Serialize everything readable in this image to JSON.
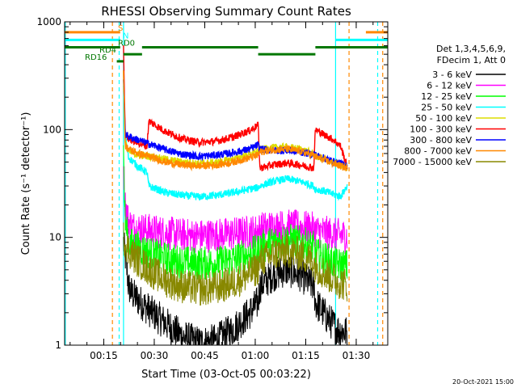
{
  "chart_data": {
    "type": "line",
    "title": "RHESSI Observing Summary Count Rates",
    "xlabel": "Start Time (03-Oct-05 00:03:22)",
    "ylabel": "Count Rate (s⁻¹ detector⁻¹)",
    "footer": "20-Oct-2021 15:00",
    "x_unit": "minutes after 00:03:22",
    "xlim": [
      0,
      96
    ],
    "ylim": [
      1,
      1000
    ],
    "y_scale": "log",
    "x_ticks": [
      {
        "value": 11.63,
        "label": "00:15"
      },
      {
        "value": 26.63,
        "label": "00:30"
      },
      {
        "value": 41.63,
        "label": "00:45"
      },
      {
        "value": 56.63,
        "label": "01:00"
      },
      {
        "value": 71.63,
        "label": "01:15"
      },
      {
        "value": 86.63,
        "label": "01:30"
      }
    ],
    "y_ticks": [
      {
        "value": 1,
        "label": "1"
      },
      {
        "value": 10,
        "label": "10"
      },
      {
        "value": 100,
        "label": "100"
      },
      {
        "value": 1000,
        "label": "1000"
      }
    ],
    "legend": {
      "placement": "right",
      "header1": "Det 1,3,4,5,6,9,",
      "header2": "FDecim 1, Att 0"
    },
    "series": [
      {
        "name": "3 - 6 keV",
        "color": "#000000",
        "x": [
          17.5,
          18.5,
          19,
          20,
          22,
          26,
          30,
          35,
          40,
          45,
          50,
          55,
          57.5,
          58,
          62,
          66,
          70,
          74,
          74.5,
          78,
          81,
          84
        ],
        "y": [
          9,
          5,
          3.5,
          3,
          2.6,
          2,
          1.6,
          1.2,
          1.05,
          1.1,
          1.4,
          2,
          2.5,
          3.5,
          4.5,
          5,
          4.5,
          3.5,
          2.5,
          1.8,
          1.4,
          1.3
        ]
      },
      {
        "name": "6 - 12 keV",
        "color": "#ff00ff",
        "x": [
          17.5,
          18,
          19,
          20,
          22,
          26,
          30,
          35,
          40,
          45,
          50,
          55,
          57.5,
          58,
          62,
          66,
          70,
          74,
          74.5,
          78,
          81,
          84
        ],
        "y": [
          45,
          20,
          14,
          12.5,
          12,
          11.5,
          11,
          10.5,
          10.3,
          10.5,
          10.8,
          11.2,
          11.5,
          12,
          12.5,
          12.7,
          12.5,
          12,
          11.5,
          11,
          10.5,
          10.3
        ]
      },
      {
        "name": "12 - 25 keV",
        "color": "#00ff00",
        "x": [
          17.5,
          18,
          19,
          20,
          22,
          26,
          30,
          35,
          40,
          45,
          50,
          55,
          57.5,
          58,
          62,
          66,
          70,
          74,
          74.5,
          78,
          81,
          84
        ],
        "y": [
          60,
          14,
          9,
          8.5,
          8,
          7,
          6.3,
          5.9,
          5.7,
          5.8,
          6.2,
          7,
          7.5,
          8,
          9,
          9.5,
          9,
          8,
          7,
          6.2,
          5.6,
          5.4
        ]
      },
      {
        "name": "25 - 50 keV",
        "color": "#00ffff",
        "x": [
          17.5,
          18,
          19,
          22,
          24.5,
          25,
          30,
          35,
          40,
          45,
          50,
          55,
          57.5,
          58,
          62,
          66,
          70,
          74,
          74.5,
          77,
          80,
          82,
          84
        ],
        "y": [
          250,
          90,
          55,
          45,
          40,
          30,
          26,
          24.5,
          23.8,
          24.5,
          26,
          28,
          29,
          30,
          33,
          35,
          33,
          30,
          28,
          27,
          25,
          24,
          30
        ]
      },
      {
        "name": "50 - 100 keV",
        "color": "#dddd00",
        "x": [
          17.5,
          18,
          19,
          22,
          26,
          30,
          35,
          40,
          45,
          50,
          55,
          57.5,
          58,
          62,
          66,
          70,
          74,
          74.5,
          78,
          81,
          84
        ],
        "y": [
          350,
          75,
          62,
          58,
          56,
          53,
          50,
          48.5,
          49.5,
          53,
          59,
          63,
          65,
          68,
          69,
          66,
          60,
          57,
          52,
          48,
          45
        ]
      },
      {
        "name": "100 - 300 keV",
        "color": "#ff0000",
        "x": [
          17.5,
          18,
          19,
          22,
          24.5,
          25,
          30,
          35,
          40,
          45,
          50,
          55,
          57.5,
          58,
          62,
          66,
          70,
          74,
          74.5,
          77,
          80,
          82,
          84
        ],
        "y": [
          600,
          90,
          82,
          75,
          70,
          120,
          96,
          82,
          76,
          78,
          85,
          98,
          110,
          44,
          47,
          49,
          47,
          44,
          100,
          90,
          80,
          70,
          45
        ]
      },
      {
        "name": "300 - 800 keV",
        "color": "#0000ff",
        "x": [
          17.5,
          18,
          19,
          22,
          26,
          30,
          35,
          40,
          45,
          50,
          55,
          57.5,
          58,
          62,
          66,
          70,
          74,
          74.5,
          78,
          81,
          84
        ],
        "y": [
          280,
          92,
          86,
          80,
          72,
          65,
          59,
          56.5,
          58,
          61,
          66,
          72,
          66,
          64,
          64,
          62,
          59,
          58,
          53,
          49,
          47
        ]
      },
      {
        "name": "800 - 7000 keV",
        "color": "#ff8800",
        "x": [
          17.5,
          18,
          19,
          22,
          26,
          30,
          35,
          40,
          45,
          50,
          55,
          57.5,
          58,
          62,
          66,
          70,
          74,
          74.5,
          78,
          81,
          84
        ],
        "y": [
          330,
          70,
          66,
          60,
          55,
          50,
          47,
          46,
          47,
          50,
          55,
          58,
          62,
          65,
          66,
          63,
          58,
          56,
          51,
          47,
          44
        ]
      },
      {
        "name": "7000 - 15000 keV",
        "color": "#888800",
        "x": [
          17.5,
          18,
          19,
          22,
          26,
          30,
          35,
          40,
          45,
          50,
          55,
          57.5,
          58,
          62,
          66,
          70,
          74,
          74.5,
          78,
          81,
          84
        ],
        "y": [
          10,
          9,
          7.5,
          6,
          4.8,
          4,
          3.5,
          3.3,
          3.4,
          3.8,
          4.6,
          5.2,
          6,
          7,
          7.5,
          7,
          6,
          5.4,
          4.5,
          3.9,
          3.6
        ]
      }
    ],
    "state_bars": [
      {
        "name": "S",
        "color": "#ff8800",
        "value": 800,
        "segments": [
          [
            0,
            16.5
          ],
          [
            89.5,
            96
          ]
        ]
      },
      {
        "name": "N",
        "color": "#00ffff",
        "value": 680,
        "segments": [
          [
            0,
            16.5
          ],
          [
            80.5,
            96
          ]
        ]
      },
      {
        "name": "RD0",
        "color": "#007700",
        "value": 580,
        "segments": [
          [
            0,
            16.5
          ],
          [
            23,
            57.5
          ],
          [
            74.5,
            96
          ]
        ]
      },
      {
        "name": "RD4",
        "color": "#007700",
        "value": 500,
        "segments": [
          [
            17.5,
            23
          ],
          [
            57.5,
            74.5
          ]
        ]
      },
      {
        "name": "RD16",
        "color": "#007700",
        "value": 430,
        "segments": [
          [
            15.5,
            17.5
          ]
        ]
      }
    ],
    "markers": [
      {
        "x": 0.2,
        "color": "#00ffff",
        "style": "solid"
      },
      {
        "x": 14.2,
        "color": "#ff8800",
        "style": "dashed"
      },
      {
        "x": 16.2,
        "color": "#00ffff",
        "style": "dashed"
      },
      {
        "x": 17.5,
        "color": "#00ffff",
        "style": "solid"
      },
      {
        "x": 80.5,
        "color": "#00ffff",
        "style": "solid"
      },
      {
        "x": 84.5,
        "color": "#ff8800",
        "style": "dashed"
      },
      {
        "x": 93.0,
        "color": "#00ffff",
        "style": "dashed"
      },
      {
        "x": 94.5,
        "color": "#ff8800",
        "style": "dashed"
      }
    ]
  }
}
